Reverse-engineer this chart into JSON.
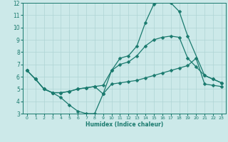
{
  "xlabel": "Humidex (Indice chaleur)",
  "xlim": [
    -0.5,
    23.5
  ],
  "ylim": [
    3,
    12
  ],
  "xticks": [
    0,
    1,
    2,
    3,
    4,
    5,
    6,
    7,
    8,
    9,
    10,
    11,
    12,
    13,
    14,
    15,
    16,
    17,
    18,
    19,
    20,
    21,
    22,
    23
  ],
  "yticks": [
    3,
    4,
    5,
    6,
    7,
    8,
    9,
    10,
    11,
    12
  ],
  "bg_color": "#cce9e9",
  "line_color": "#1a7a6e",
  "grid_color": "#aed4d4",
  "line1_x": [
    0,
    1,
    2,
    3,
    4,
    5,
    6,
    7,
    8,
    9,
    10,
    11,
    12,
    13,
    14,
    15,
    16,
    17,
    18,
    19,
    21,
    22,
    23
  ],
  "line1_y": [
    6.5,
    5.8,
    5.0,
    4.7,
    4.3,
    3.7,
    3.2,
    3.0,
    3.0,
    4.6,
    6.5,
    7.5,
    7.7,
    8.5,
    10.4,
    11.9,
    12.1,
    12.0,
    11.3,
    9.3,
    6.1,
    5.8,
    5.5
  ],
  "line2_x": [
    0,
    1,
    2,
    3,
    4,
    5,
    6,
    7,
    8,
    9,
    10,
    11,
    12,
    13,
    14,
    15,
    16,
    17,
    18,
    19,
    20,
    21,
    22,
    23
  ],
  "line2_y": [
    6.5,
    5.8,
    5.0,
    4.7,
    4.7,
    4.8,
    5.0,
    5.1,
    5.2,
    5.3,
    6.5,
    7.0,
    7.2,
    7.7,
    8.5,
    9.0,
    9.2,
    9.3,
    9.2,
    7.5,
    6.8,
    6.1,
    5.8,
    5.5
  ],
  "line3_x": [
    0,
    1,
    2,
    3,
    4,
    5,
    6,
    7,
    8,
    9,
    10,
    11,
    12,
    13,
    14,
    15,
    16,
    17,
    18,
    19,
    20,
    21,
    22,
    23
  ],
  "line3_y": [
    6.5,
    5.8,
    5.0,
    4.7,
    4.7,
    4.8,
    5.0,
    5.1,
    5.2,
    4.6,
    5.4,
    5.5,
    5.6,
    5.7,
    5.9,
    6.1,
    6.3,
    6.5,
    6.7,
    6.9,
    7.5,
    5.4,
    5.3,
    5.2
  ]
}
